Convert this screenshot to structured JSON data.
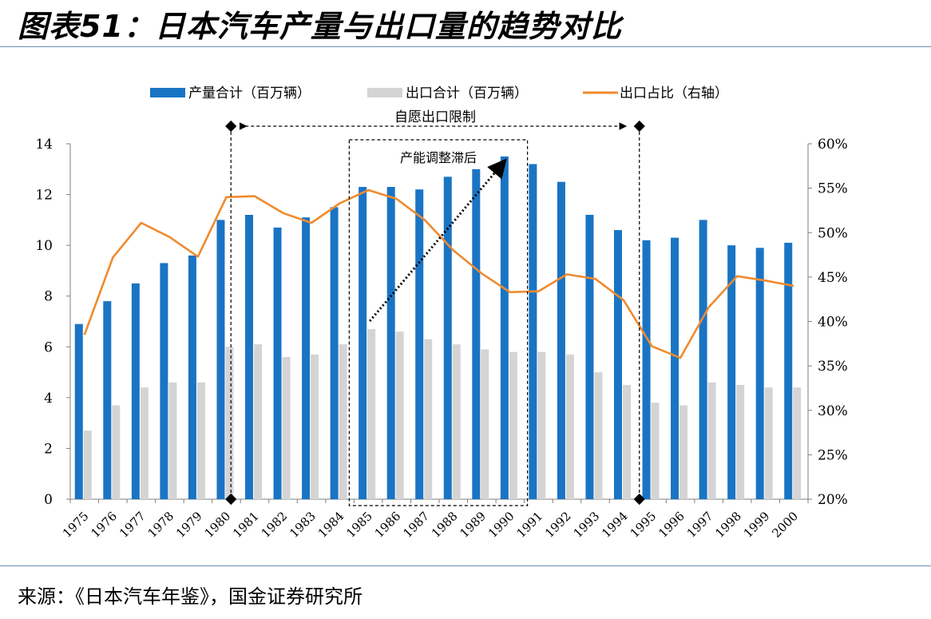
{
  "title": "图表51：日本汽车产量与出口量的趋势对比",
  "source": "来源：《日本汽车年鉴》，国金证券研究所",
  "chart_data": {
    "type": "bar",
    "categories": [
      "1975",
      "1976",
      "1977",
      "1978",
      "1979",
      "1980",
      "1981",
      "1982",
      "1983",
      "1984",
      "1985",
      "1986",
      "1987",
      "1988",
      "1989",
      "1990",
      "1991",
      "1992",
      "1993",
      "1994",
      "1995",
      "1996",
      "1997",
      "1998",
      "1999",
      "2000"
    ],
    "series": [
      {
        "name": "产量合计（百万辆）",
        "type": "bar",
        "axis": "left",
        "color": "#1a74c4",
        "values": [
          6.9,
          7.8,
          8.5,
          9.3,
          9.6,
          11.0,
          11.2,
          10.7,
          11.1,
          11.5,
          12.3,
          12.3,
          12.2,
          12.7,
          13.0,
          13.5,
          13.2,
          12.5,
          11.2,
          10.6,
          10.2,
          10.3,
          11.0,
          10.0,
          9.9,
          10.1
        ]
      },
      {
        "name": "出口合计（百万辆）",
        "type": "bar",
        "axis": "left",
        "color": "#d4d4d4",
        "values": [
          2.7,
          3.7,
          4.4,
          4.6,
          4.6,
          6.0,
          6.1,
          5.6,
          5.7,
          6.1,
          6.7,
          6.6,
          6.3,
          6.1,
          5.9,
          5.8,
          5.8,
          5.7,
          5.0,
          4.5,
          3.8,
          3.7,
          4.6,
          4.5,
          4.4,
          4.4
        ]
      },
      {
        "name": "出口占比（右轴）",
        "type": "line",
        "axis": "right",
        "color": "#f08a2e",
        "values": [
          38.5,
          47.2,
          51.1,
          49.5,
          47.3,
          54.0,
          54.1,
          52.2,
          51.1,
          53.3,
          54.8,
          53.8,
          51.4,
          48.0,
          45.4,
          43.3,
          43.4,
          45.3,
          44.8,
          42.4,
          37.2,
          35.9,
          41.6,
          45.1,
          44.6,
          44.0
        ]
      }
    ],
    "y_left": {
      "min": 0,
      "max": 14,
      "ticks": [
        "0",
        "2",
        "4",
        "6",
        "8",
        "10",
        "12",
        "14"
      ]
    },
    "y_right": {
      "min": 20,
      "max": 60,
      "ticks": [
        "20%",
        "25%",
        "30%",
        "35%",
        "40%",
        "45%",
        "50%",
        "55%",
        "60%"
      ]
    },
    "legend_position": "top",
    "annotations": {
      "restriction_label": "自愿出口限制",
      "lag_label": "产能调整滞后"
    }
  }
}
